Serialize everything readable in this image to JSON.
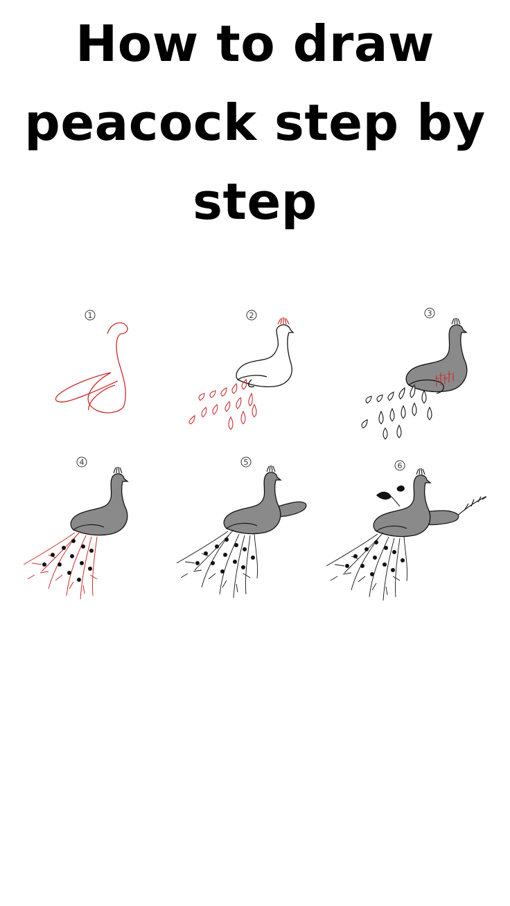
{
  "title": {
    "line1": "How to draw",
    "line2": "peacock step by",
    "line3": "step"
  },
  "steps": [
    {
      "number": "1"
    },
    {
      "number": "2"
    },
    {
      "number": "3"
    },
    {
      "number": "4"
    },
    {
      "number": "5"
    },
    {
      "number": "6"
    }
  ],
  "colors": {
    "background": "#ffffff",
    "text": "#000000",
    "sketch_red": "#cc2a2a",
    "body_gray": "#8a8a8a",
    "ink": "#111111"
  }
}
